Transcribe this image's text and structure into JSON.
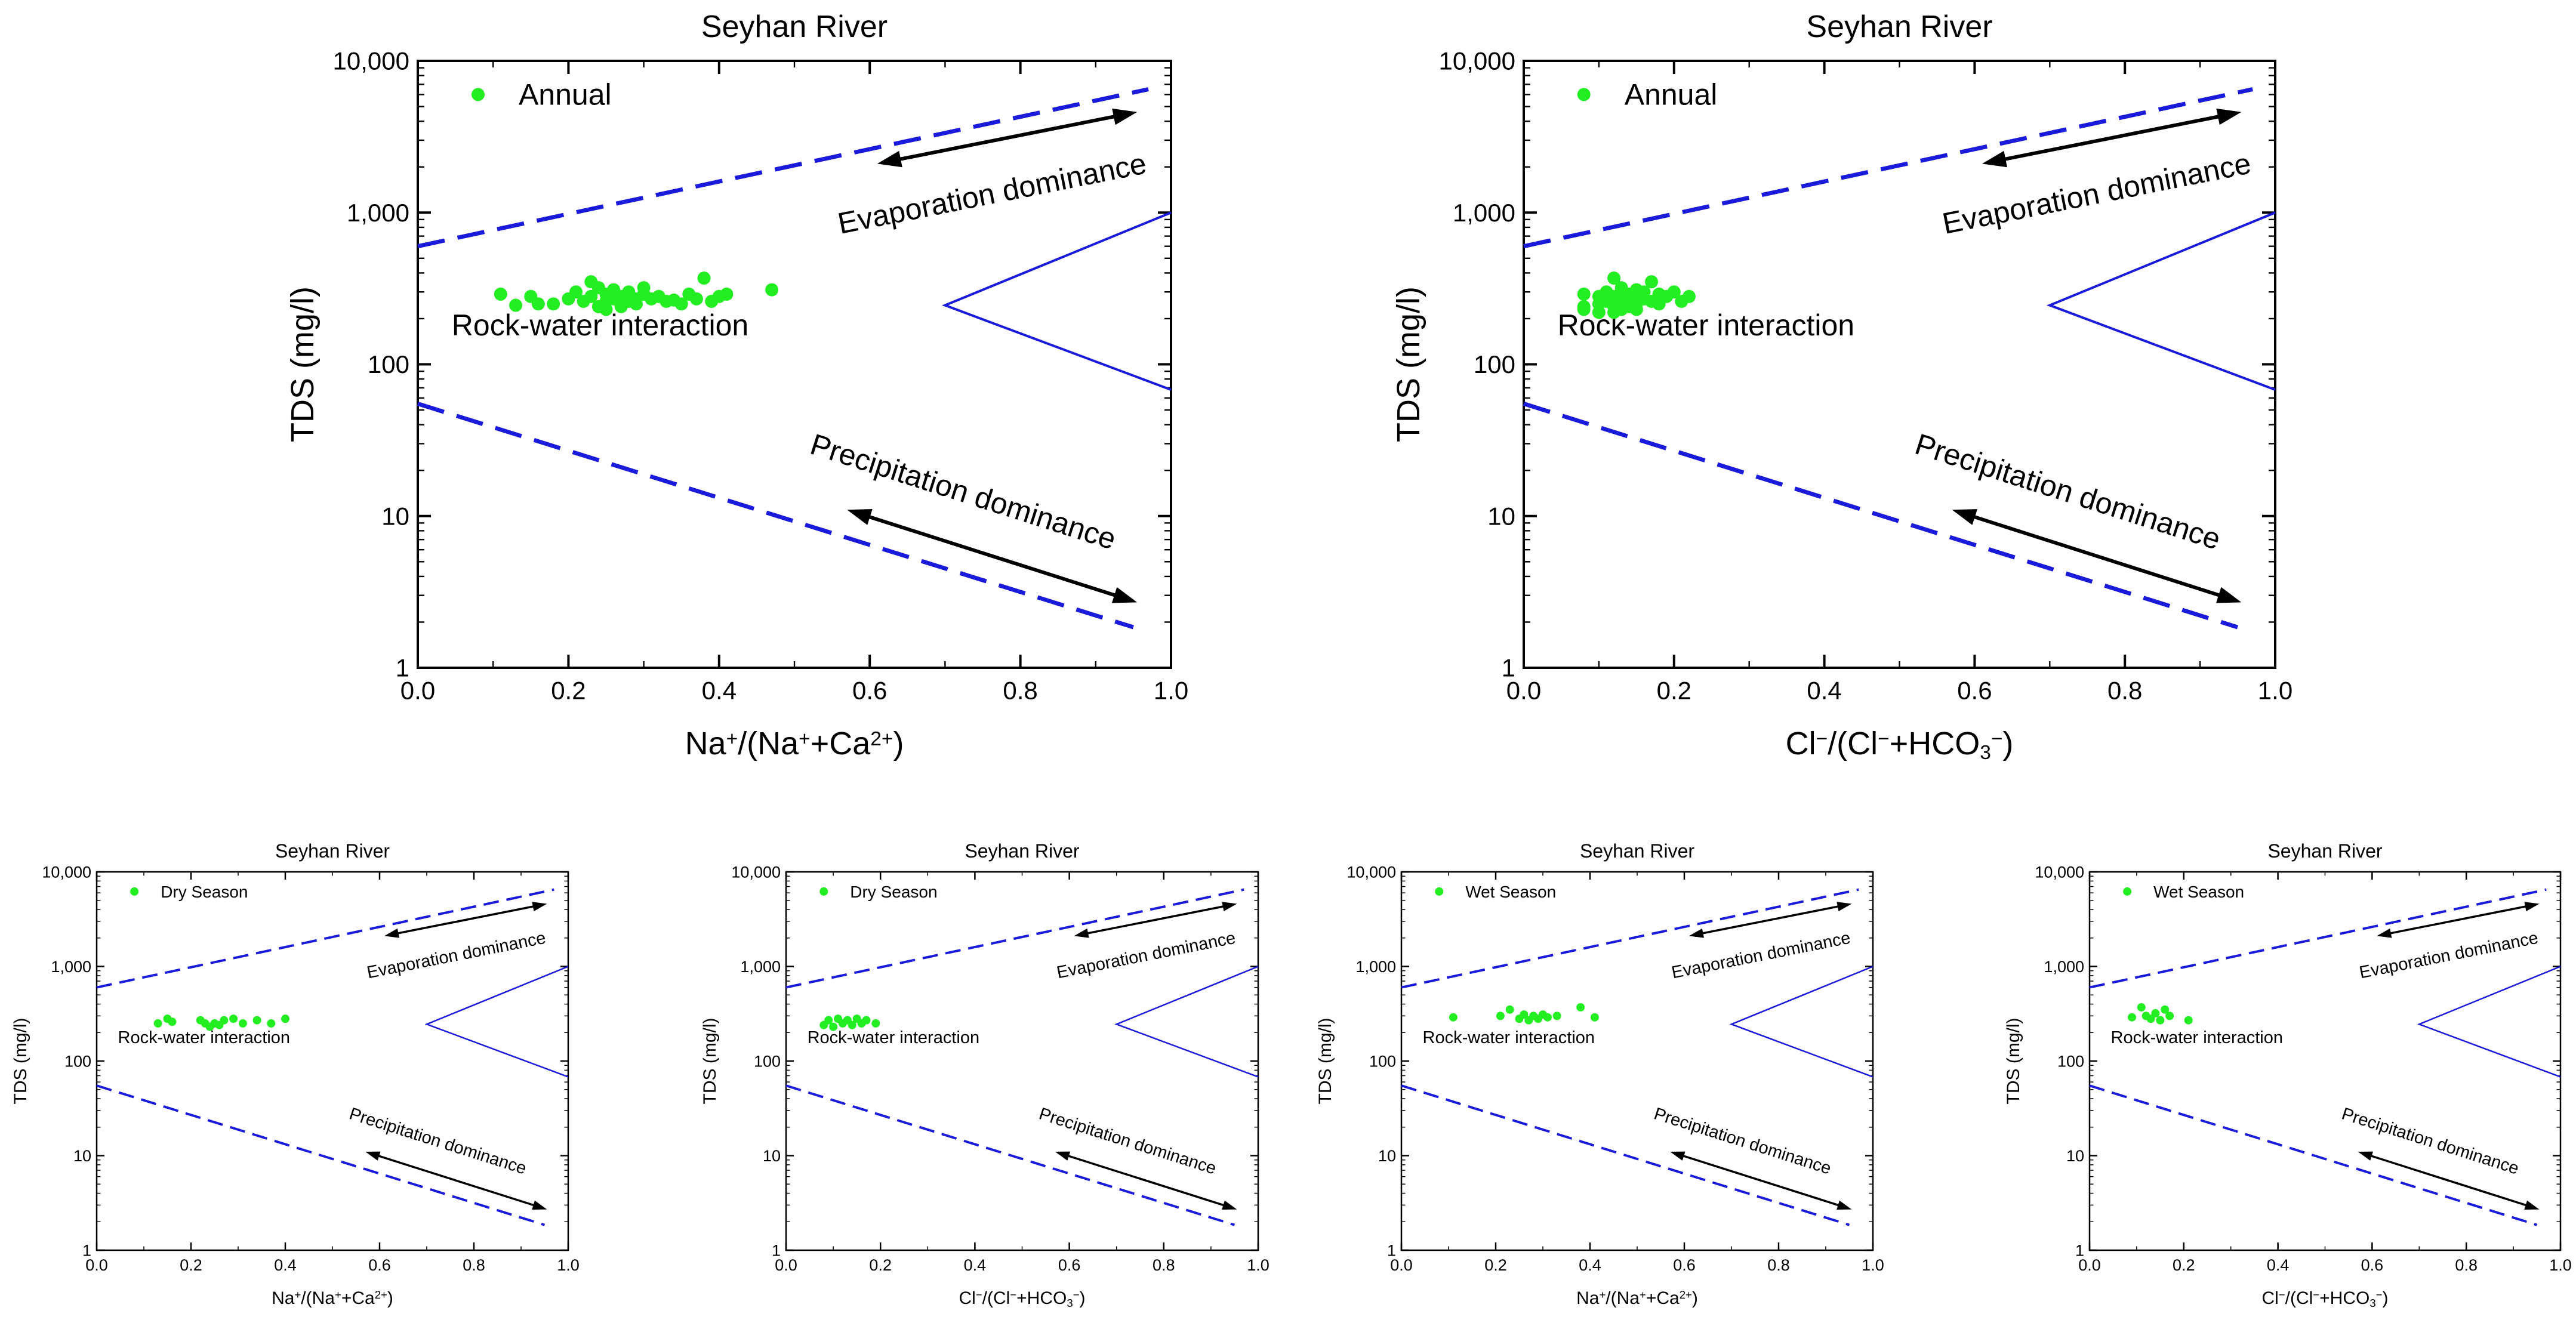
{
  "figure": {
    "common": {
      "title": "Seyhan River",
      "ylabel": "TDS (mg/l)",
      "yticks": [
        "1",
        "10",
        "100",
        "1,000",
        "10,000"
      ],
      "xticks": [
        "0.0",
        "0.2",
        "0.4",
        "0.6",
        "0.8",
        "1.0"
      ],
      "annotations": {
        "evaporation": "Evaporation dominance",
        "rock": "Rock-water interaction",
        "precipitation": "Precipitation dominance"
      },
      "colors": {
        "points": "#22ee22",
        "boundary": "#1a1adb",
        "arrow": "#000000",
        "axis": "#000000"
      }
    }
  },
  "chart_data": [
    {
      "type": "scatter",
      "id": "annual-na",
      "title": "Seyhan River",
      "legend": "Annual",
      "xlabel": {
        "base": "Na",
        "parts": [
          [
            "Na",
            ""
          ],
          [
            "+",
            "sup"
          ],
          [
            "/(Na",
            ""
          ],
          [
            "+",
            "sup"
          ],
          [
            "+Ca",
            ""
          ],
          [
            "2+",
            "sup"
          ],
          [
            ")",
            ""
          ]
        ]
      },
      "ylabel": "TDS (mg/l)",
      "xlim": [
        0,
        1
      ],
      "ylim": [
        1,
        10000
      ],
      "yscale": "log",
      "x": [
        0.11,
        0.13,
        0.15,
        0.16,
        0.18,
        0.2,
        0.21,
        0.22,
        0.23,
        0.23,
        0.24,
        0.24,
        0.25,
        0.25,
        0.25,
        0.26,
        0.26,
        0.27,
        0.27,
        0.27,
        0.28,
        0.28,
        0.29,
        0.29,
        0.3,
        0.3,
        0.31,
        0.32,
        0.33,
        0.34,
        0.35,
        0.36,
        0.37,
        0.38,
        0.39,
        0.4,
        0.41,
        0.47
      ],
      "y": [
        290,
        245,
        280,
        250,
        250,
        270,
        300,
        260,
        350,
        280,
        240,
        320,
        230,
        290,
        260,
        270,
        310,
        255,
        280,
        240,
        300,
        260,
        270,
        250,
        290,
        320,
        270,
        280,
        260,
        265,
        250,
        290,
        270,
        370,
        260,
        280,
        290,
        310
      ]
    },
    {
      "type": "scatter",
      "id": "annual-cl",
      "title": "Seyhan River",
      "legend": "Annual",
      "xlabel": {
        "base": "Cl",
        "parts": [
          [
            "Cl",
            ""
          ],
          [
            "−",
            "sup"
          ],
          [
            "/(Cl",
            ""
          ],
          [
            "−",
            "sup"
          ],
          [
            "+HCO",
            ""
          ],
          [
            "3",
            "sub"
          ],
          [
            "−",
            "sup"
          ],
          [
            ")",
            ""
          ]
        ]
      },
      "ylabel": "TDS (mg/l)",
      "xlim": [
        0,
        1
      ],
      "ylim": [
        1,
        10000
      ],
      "yscale": "log",
      "x": [
        0.08,
        0.08,
        0.08,
        0.1,
        0.1,
        0.1,
        0.11,
        0.11,
        0.12,
        0.12,
        0.12,
        0.12,
        0.13,
        0.13,
        0.13,
        0.13,
        0.14,
        0.14,
        0.14,
        0.15,
        0.15,
        0.15,
        0.15,
        0.16,
        0.16,
        0.17,
        0.17,
        0.18,
        0.18,
        0.19,
        0.2,
        0.21,
        0.22
      ],
      "y": [
        290,
        240,
        230,
        280,
        250,
        220,
        300,
        260,
        370,
        280,
        240,
        220,
        320,
        270,
        250,
        230,
        290,
        260,
        240,
        310,
        280,
        250,
        230,
        300,
        270,
        350,
        260,
        290,
        250,
        280,
        300,
        260,
        280
      ]
    },
    {
      "type": "scatter",
      "id": "dry-na",
      "title": "Seyhan River",
      "legend": "Dry Season",
      "xlabel": {
        "parts": [
          [
            "Na",
            ""
          ],
          [
            "+",
            "sup"
          ],
          [
            "/(Na",
            ""
          ],
          [
            "+",
            "sup"
          ],
          [
            "+Ca",
            ""
          ],
          [
            "2+",
            "sup"
          ],
          [
            ")",
            ""
          ]
        ]
      },
      "ylabel": "TDS (mg/l)",
      "xlim": [
        0,
        1
      ],
      "ylim": [
        1,
        10000
      ],
      "yscale": "log",
      "x": [
        0.13,
        0.15,
        0.16,
        0.22,
        0.23,
        0.24,
        0.25,
        0.26,
        0.27,
        0.29,
        0.31,
        0.34,
        0.37,
        0.4
      ],
      "y": [
        250,
        280,
        260,
        270,
        250,
        230,
        250,
        240,
        270,
        280,
        250,
        270,
        250,
        280
      ]
    },
    {
      "type": "scatter",
      "id": "dry-cl",
      "title": "Seyhan River",
      "legend": "Dry Season",
      "xlabel": {
        "parts": [
          [
            "Cl",
            ""
          ],
          [
            "−",
            "sup"
          ],
          [
            "/(Cl",
            ""
          ],
          [
            "−",
            "sup"
          ],
          [
            "+HCO",
            ""
          ],
          [
            "3",
            "sub"
          ],
          [
            "−",
            "sup"
          ],
          [
            ")",
            ""
          ]
        ]
      },
      "ylabel": "TDS (mg/l)",
      "xlim": [
        0,
        1
      ],
      "ylim": [
        1,
        10000
      ],
      "yscale": "log",
      "x": [
        0.08,
        0.09,
        0.1,
        0.11,
        0.12,
        0.13,
        0.14,
        0.15,
        0.16,
        0.17,
        0.19
      ],
      "y": [
        240,
        270,
        230,
        280,
        250,
        270,
        240,
        280,
        250,
        270,
        250
      ]
    },
    {
      "type": "scatter",
      "id": "wet-na",
      "title": "Seyhan River",
      "legend": "Wet Season",
      "xlabel": {
        "parts": [
          [
            "Na",
            ""
          ],
          [
            "+",
            "sup"
          ],
          [
            "/(Na",
            ""
          ],
          [
            "+",
            "sup"
          ],
          [
            "+Ca",
            ""
          ],
          [
            "2+",
            "sup"
          ],
          [
            ")",
            ""
          ]
        ]
      },
      "ylabel": "TDS (mg/l)",
      "xlim": [
        0,
        1
      ],
      "ylim": [
        1,
        10000
      ],
      "yscale": "log",
      "x": [
        0.11,
        0.21,
        0.23,
        0.25,
        0.26,
        0.27,
        0.28,
        0.29,
        0.3,
        0.31,
        0.33,
        0.38,
        0.41
      ],
      "y": [
        290,
        300,
        350,
        280,
        310,
        270,
        300,
        280,
        310,
        290,
        300,
        370,
        290
      ]
    },
    {
      "type": "scatter",
      "id": "wet-cl",
      "title": "Seyhan River",
      "legend": "Wet Season",
      "xlabel": {
        "parts": [
          [
            "Cl",
            ""
          ],
          [
            "−",
            "sup"
          ],
          [
            "/(Cl",
            ""
          ],
          [
            "−",
            "sup"
          ],
          [
            "+HCO",
            ""
          ],
          [
            "3",
            "sub"
          ],
          [
            "−",
            "sup"
          ],
          [
            ")",
            ""
          ]
        ]
      },
      "ylabel": "TDS (mg/l)",
      "xlim": [
        0,
        1
      ],
      "ylim": [
        1,
        10000
      ],
      "yscale": "log",
      "x": [
        0.09,
        0.11,
        0.12,
        0.13,
        0.14,
        0.15,
        0.16,
        0.17,
        0.21
      ],
      "y": [
        290,
        370,
        300,
        280,
        320,
        270,
        350,
        300,
        270
      ]
    }
  ]
}
